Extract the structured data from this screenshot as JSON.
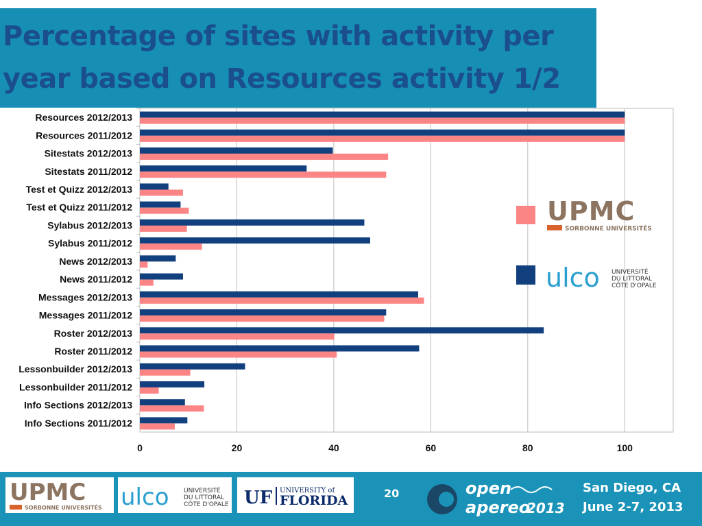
{
  "slide": {
    "title_line1": "Percentage of sites with activity per",
    "title_line2": "year based on Resources activity 1/2",
    "page_number": "20",
    "location": "San Diego, CA",
    "dates": "June 2-7, 2013"
  },
  "colors": {
    "upmc_series": "#fb8585",
    "ulco_series": "#123f7e",
    "title_bg": "#178fb5",
    "title_text": "#1a4e8c",
    "footer_bg": "#1b93b8"
  },
  "legend": {
    "upmc": {
      "logo_text": "UPMC",
      "logo_sub": "SORBONNE UNIVERSITÉS"
    },
    "ulco": {
      "logo_text": "ulco",
      "logo_sub1": "UNIVERSITÉ",
      "logo_sub2": "DU LITTORAL",
      "logo_sub3": "CÔTE D'OPALE"
    }
  },
  "footer_logos": {
    "upmc": {
      "text": "UPMC",
      "sub": "SORBONNE UNIVERSITÉS"
    },
    "ulco": {
      "text": "ulco",
      "sub1": "UNIVERSITÉ",
      "sub2": "DU LITTORAL",
      "sub3": "CÔTE D'OPALE"
    },
    "uf": {
      "mark": "UF",
      "line1": "UNIVERSITY of",
      "line2": "FLORIDA"
    },
    "apereo": {
      "line1": "open",
      "line2": "apereo",
      "year": "2013"
    }
  },
  "chart_data": {
    "type": "bar",
    "orientation": "horizontal",
    "categories": [
      "Resources 2012/2013",
      "Resources 2011/2012",
      "Sitestats 2012/2013",
      "Sitestats 2011/2012",
      "Test et Quizz 2012/2013",
      "Test et Quizz 2011/2012",
      "Sylabus 2012/2013",
      "Sylabus 2011/2012",
      "News 2012/2013",
      "News 2011/2012",
      "Messages 2012/2013",
      "Messages 2011/2012",
      "Roster 2012/2013",
      "Roster 2011/2012",
      "Lessonbuilder 2012/2013",
      "Lessonbuilder 2011/2012",
      "Info Sections 2012/2013",
      "Info Sections 2011/2012"
    ],
    "series": [
      {
        "key": "ulco",
        "values": [
          100,
          100,
          39.8,
          34.4,
          5.9,
          8.4,
          46.3,
          47.5,
          7.4,
          8.9,
          57.4,
          50.8,
          83.3,
          57.6,
          21.7,
          13.3,
          9.3,
          9.8
        ]
      },
      {
        "key": "upmc",
        "values": [
          100,
          100,
          51.2,
          50.8,
          8.9,
          10.1,
          9.7,
          12.8,
          1.6,
          2.8,
          58.6,
          50.4,
          40.1,
          40.6,
          10.4,
          3.9,
          13.2,
          7.2
        ]
      }
    ],
    "xlim": [
      0,
      110
    ],
    "xticks": [
      "0",
      "20",
      "40",
      "60",
      "80",
      "100"
    ],
    "grid": true,
    "legend_placement": "right"
  }
}
